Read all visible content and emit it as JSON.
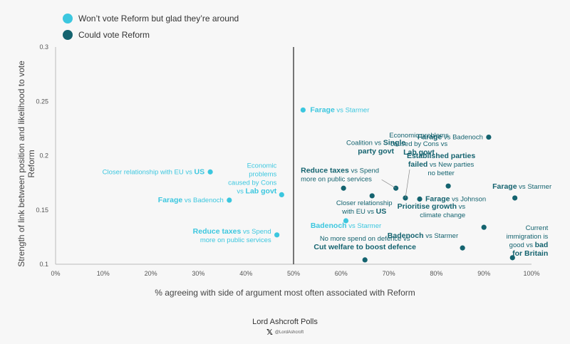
{
  "colors": {
    "light": "#3cc7df",
    "dark": "#14636f",
    "axis": "#555555",
    "divider": "#555555"
  },
  "legend": {
    "items": [
      {
        "label": "Won’t vote Reform but glad they’re around",
        "color": "#3cc7df"
      },
      {
        "label": "Could vote Reform",
        "color": "#14636f"
      }
    ]
  },
  "footer": {
    "source": "Lord Ashcroft Polls",
    "handle": "@LordAshcroft",
    "icon": "x-logo-icon"
  },
  "chart_data": {
    "type": "scatter",
    "xlabel": "% agreeing with side of argument most often associated with Reform",
    "ylabel": "Strength of link between position and likelihood to vote Reform",
    "xlim": [
      0,
      100
    ],
    "ylim": [
      0.1,
      0.3
    ],
    "xticks": [
      "0%",
      "10%",
      "20%",
      "30%",
      "40%",
      "50%",
      "60%",
      "70%",
      "80%",
      "90%",
      "100%"
    ],
    "yticks": [
      "0.1",
      "0.15",
      "0.2",
      "0.25",
      "0.3"
    ],
    "reference_line_x": 50,
    "grid": false,
    "legend_position": "top-left",
    "series": [
      {
        "name": "Won’t vote Reform but glad they’re around",
        "color": "#3cc7df",
        "points": [
          {
            "x": 52,
            "y": 0.242,
            "label": [
              [
                {
                  "t": "Farage",
                  "b": true
                },
                {
                  "t": " vs Starmer"
                }
              ]
            ]
          },
          {
            "x": 32.5,
            "y": 0.185,
            "label": [
              [
                {
                  "t": "Closer relationship with EU vs "
                },
                {
                  "t": "US",
                  "b": true
                }
              ]
            ]
          },
          {
            "x": 47.5,
            "y": 0.164,
            "label": [
              [
                {
                  "t": "Economic"
                }
              ],
              [
                {
                  "t": "problems"
                }
              ],
              [
                {
                  "t": "caused by Cons"
                }
              ],
              [
                {
                  "t": "vs "
                },
                {
                  "t": "Lab govt",
                  "b": true
                }
              ]
            ]
          },
          {
            "x": 36.5,
            "y": 0.159,
            "label": [
              [
                {
                  "t": "Farage",
                  "b": true
                },
                {
                  "t": " vs Badenoch"
                }
              ]
            ]
          },
          {
            "x": 46.5,
            "y": 0.127,
            "label": [
              [
                {
                  "t": "Reduce taxes",
                  "b": true
                },
                {
                  "t": " vs Spend"
                }
              ],
              [
                {
                  "t": "more on public services"
                }
              ]
            ]
          },
          {
            "x": 61,
            "y": 0.14,
            "label": [
              [
                {
                  "t": "Badenoch",
                  "b": true
                },
                {
                  "t": " vs Starmer"
                }
              ]
            ]
          }
        ]
      },
      {
        "name": "Could vote Reform",
        "color": "#14636f",
        "points": [
          {
            "x": 91,
            "y": 0.217,
            "label": [
              [
                {
                  "t": "Farage",
                  "b": true
                },
                {
                  "t": " vs Badenoch"
                }
              ]
            ]
          },
          {
            "x": 71.5,
            "y": 0.17,
            "label": [
              [
                {
                  "t": "Coalition vs "
                },
                {
                  "t": "Single",
                  "b": true
                }
              ],
              [
                {
                  "t": "party govt",
                  "b": true
                }
              ]
            ]
          },
          {
            "x": 73.5,
            "y": 0.161,
            "label": [
              [
                {
                  "t": "Economic problems"
                }
              ],
              [
                {
                  "t": "caused by Cons vs"
                }
              ],
              [
                {
                  "t": "Lab govt",
                  "b": true
                }
              ]
            ]
          },
          {
            "x": 82.5,
            "y": 0.172,
            "label": [
              [
                {
                  "t": "Established parties",
                  "b": true
                }
              ],
              [
                {
                  "t": "failed",
                  "b": true
                },
                {
                  "t": " vs New parties"
                }
              ],
              [
                {
                  "t": "no better"
                }
              ]
            ]
          },
          {
            "x": 60.5,
            "y": 0.17,
            "label": [
              [
                {
                  "t": "Reduce taxes",
                  "b": true
                },
                {
                  "t": " vs Spend"
                }
              ],
              [
                {
                  "t": "more on public services"
                }
              ]
            ]
          },
          {
            "x": 66.5,
            "y": 0.163,
            "label": [
              [
                {
                  "t": "Closer relationship"
                }
              ],
              [
                {
                  "t": "with EU vs "
                },
                {
                  "t": "US",
                  "b": true
                }
              ]
            ]
          },
          {
            "x": 76.5,
            "y": 0.16,
            "label": [
              [
                {
                  "t": "Farage",
                  "b": true
                },
                {
                  "t": " vs Johnson"
                }
              ]
            ]
          },
          {
            "x": 96.5,
            "y": 0.161,
            "label": [
              [
                {
                  "t": "Farage",
                  "b": true
                },
                {
                  "t": " vs Starmer"
                }
              ]
            ]
          },
          {
            "x": 90,
            "y": 0.134,
            "label": [
              [
                {
                  "t": "Prioritise growth",
                  "b": true
                },
                {
                  "t": " vs"
                }
              ],
              [
                {
                  "t": "climate change"
                }
              ]
            ]
          },
          {
            "x": 85.5,
            "y": 0.115,
            "label": [
              [
                {
                  "t": "Badenoch",
                  "b": true
                },
                {
                  "t": " vs Starmer"
                }
              ]
            ]
          },
          {
            "x": 65,
            "y": 0.104,
            "label": [
              [
                {
                  "t": "No more spend on defence vs"
                }
              ],
              [
                {
                  "t": "Cut welfare to boost defence",
                  "b": true
                }
              ]
            ]
          },
          {
            "x": 96,
            "y": 0.106,
            "label": [
              [
                {
                  "t": "Current"
                }
              ],
              [
                {
                  "t": "immigration is"
                }
              ],
              [
                {
                  "t": "good vs "
                },
                {
                  "t": "bad",
                  "b": true
                }
              ],
              [
                {
                  "t": "for Britain",
                  "b": true
                }
              ]
            ]
          }
        ]
      }
    ]
  }
}
